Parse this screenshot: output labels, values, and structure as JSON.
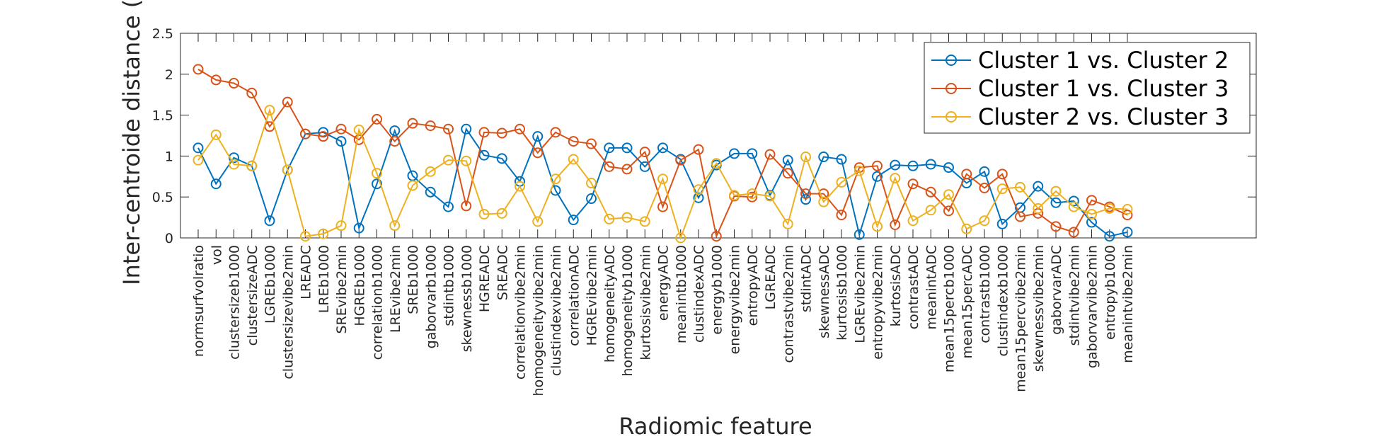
{
  "chart_data": {
    "type": "line",
    "xlabel": "Radiomic feature",
    "ylabel": "Inter-centroide distance (a",
    "ylim": [
      0,
      2.5
    ],
    "yticks": [
      0,
      0.5,
      1,
      1.5,
      2,
      2.5
    ],
    "ytick_labels": [
      "0",
      "0.5",
      "1",
      "1.5",
      "2",
      "2.5"
    ],
    "grid": false,
    "legend_position": "top-right",
    "categories": [
      "normsurfvolratio",
      "vol",
      "clustersizeb1000",
      "clustersizeADC",
      "LGREb1000",
      "clustersizevibe2min",
      "LREADC",
      "LREb1000",
      "SREvibe2min",
      "HGREb1000",
      "correlationb1000",
      "LREvibe2min",
      "SREb1000",
      "gaborvarb1000",
      "stdintb1000",
      "skewnessb1000",
      "HGREADC",
      "SREADC",
      "correlationvibe2min",
      "homogeneityvibe2min",
      "clustindexvibe2min",
      "correlationADC",
      "HGREvibe2min",
      "homogeneityADC",
      "homogeneityb1000",
      "kurtosisvibe2min",
      "energyADC",
      "meanintb1000",
      "clustindexADC",
      "energyb1000",
      "energyvibe2min",
      "entropyADC",
      "LGREADC",
      "contrastvibe2min",
      "stdintADC",
      "skewnessADC",
      "kurtosisb1000",
      "LGREvibe2min",
      "entropyvibe2min",
      "kurtosisADC",
      "contrastADC",
      "meanintADC",
      "mean15percb1000",
      "mean15percADC",
      "contrastb1000",
      "clustindexb1000",
      "mean15percvibe2min",
      "skewnessvibe2min",
      "gaborvarADC",
      "stdintvibe2min",
      "gaborvarvibe2min",
      "entropyb1000",
      "meanintvibe2min"
    ],
    "series": [
      {
        "name": "Cluster 1 vs. Cluster 2",
        "color": "#0072BD",
        "values": [
          1.1,
          0.66,
          0.98,
          0.88,
          0.21,
          0.83,
          1.27,
          1.29,
          1.18,
          0.12,
          0.66,
          1.31,
          0.76,
          0.56,
          0.38,
          1.33,
          1.01,
          0.97,
          0.69,
          1.24,
          0.58,
          0.22,
          0.48,
          1.1,
          1.1,
          0.87,
          1.1,
          0.96,
          0.49,
          0.89,
          1.03,
          1.03,
          0.52,
          0.95,
          0.47,
          0.99,
          0.96,
          0.04,
          0.75,
          0.89,
          0.88,
          0.9,
          0.86,
          0.67,
          0.81,
          0.17,
          0.37,
          0.63,
          0.43,
          0.45,
          0.19,
          0.02,
          0.07
        ]
      },
      {
        "name": "Cluster 1 vs. Cluster 3",
        "color": "#D95319",
        "values": [
          2.06,
          1.93,
          1.89,
          1.77,
          1.36,
          1.66,
          1.27,
          1.24,
          1.33,
          1.2,
          1.45,
          1.18,
          1.4,
          1.37,
          1.33,
          0.39,
          1.29,
          1.28,
          1.33,
          1.04,
          1.29,
          1.18,
          1.15,
          0.87,
          0.84,
          1.05,
          0.38,
          0.95,
          1.08,
          0.02,
          0.51,
          0.5,
          1.02,
          0.79,
          0.54,
          0.54,
          0.28,
          0.86,
          0.88,
          0.16,
          0.66,
          0.56,
          0.33,
          0.78,
          0.61,
          0.78,
          0.26,
          0.3,
          0.14,
          0.07,
          0.46,
          0.38,
          0.28
        ]
      },
      {
        "name": "Cluster 2 vs. Cluster 3",
        "color": "#EDB120",
        "values": [
          0.95,
          1.26,
          0.9,
          0.88,
          1.56,
          0.83,
          0.02,
          0.05,
          0.15,
          1.32,
          0.79,
          0.15,
          0.64,
          0.81,
          0.95,
          0.94,
          0.29,
          0.3,
          0.63,
          0.2,
          0.72,
          0.96,
          0.67,
          0.23,
          0.25,
          0.2,
          0.72,
          0.0,
          0.59,
          0.91,
          0.52,
          0.54,
          0.51,
          0.17,
          0.99,
          0.44,
          0.68,
          0.82,
          0.14,
          0.73,
          0.21,
          0.34,
          0.53,
          0.11,
          0.21,
          0.6,
          0.62,
          0.36,
          0.57,
          0.38,
          0.29,
          0.36,
          0.35
        ]
      }
    ]
  }
}
